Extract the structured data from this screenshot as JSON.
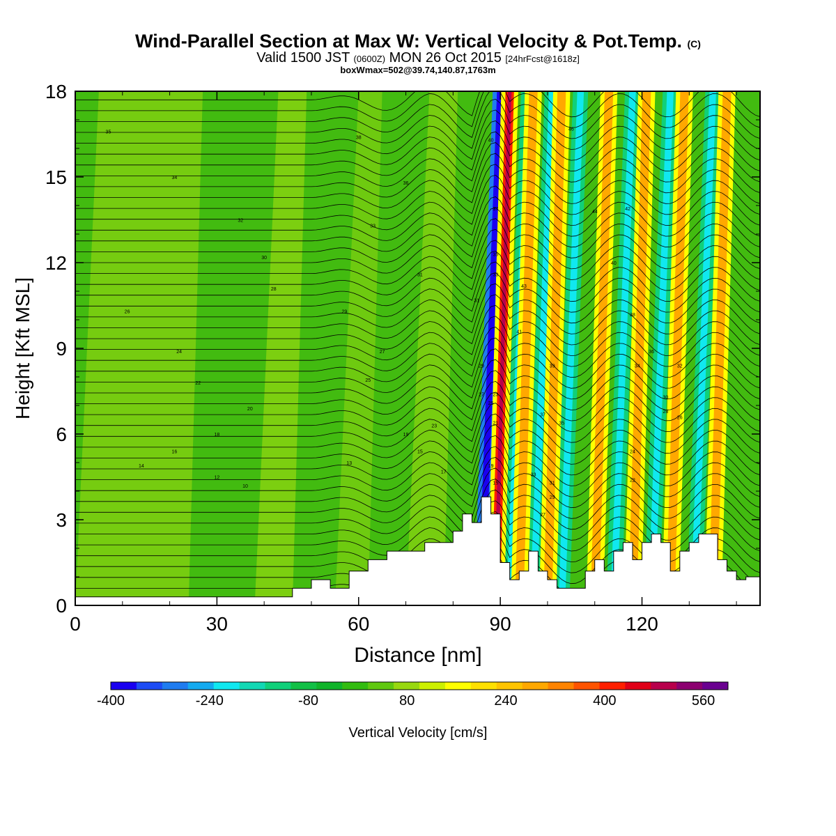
{
  "title": {
    "main": "Wind-Parallel Section at Max W: Vertical Velocity & Pot.Temp.",
    "copyright": "(C)",
    "valid_pre": "Valid 1500 JST",
    "valid_utc": "(0600Z)",
    "valid_post": "MON 26 Oct 2015",
    "forecast": "[24hrFcst@1618z]",
    "box": "boxWmax=502@39.74,140.87,1763m"
  },
  "chart_data": {
    "type": "heatmap",
    "xlabel": "Distance [nm]",
    "ylabel": "Height [Kft MSL]",
    "xlim": [
      0,
      145
    ],
    "ylim": [
      0,
      18
    ],
    "x_ticks": [
      0,
      30,
      60,
      90,
      120
    ],
    "y_ticks": [
      0,
      3,
      6,
      9,
      12,
      15,
      18
    ],
    "colorbar": {
      "label": "Vertical Velocity [cm/s]",
      "ticks": [
        "-400",
        "-240",
        "-80",
        "80",
        "240",
        "400",
        "560"
      ],
      "range": [
        -400,
        600
      ],
      "colors": [
        "#1a00f0",
        "#1e4cf5",
        "#1f7cf0",
        "#14aaf0",
        "#10e8f0",
        "#12d8b4",
        "#10d07a",
        "#12c046",
        "#10b42a",
        "#32bc10",
        "#60c810",
        "#98d810",
        "#ccf000",
        "#ffff00",
        "#ffe000",
        "#ffc400",
        "#ffa800",
        "#ff8400",
        "#ff5400",
        "#ff2000",
        "#e00018",
        "#b8004c",
        "#8c0070",
        "#6a0090"
      ]
    },
    "updraft_bands_x_nm": [
      89,
      94,
      100,
      110,
      118,
      126,
      135
    ],
    "downdraft_bands_x_nm": [
      86,
      92,
      97,
      103,
      114,
      122,
      131
    ],
    "terrain": {
      "x": [
        0,
        10,
        20,
        30,
        40,
        46,
        50,
        54,
        58,
        62,
        66,
        70,
        74,
        78,
        80,
        82,
        84,
        86,
        88,
        90,
        92,
        94,
        96,
        98,
        100,
        102,
        104,
        106,
        108,
        110,
        112,
        114,
        116,
        118,
        120,
        122,
        124,
        126,
        128,
        130,
        132,
        134,
        136,
        138,
        140,
        142,
        145
      ],
      "h": [
        0.3,
        0.3,
        0.3,
        0.3,
        0.3,
        0.6,
        0.9,
        0.6,
        1.2,
        1.6,
        1.9,
        1.9,
        2.2,
        2.2,
        2.6,
        3.2,
        2.9,
        3.8,
        3.2,
        1.5,
        0.9,
        1.2,
        1.9,
        1.2,
        0.9,
        0.6,
        0.6,
        0.6,
        1.2,
        1.6,
        1.2,
        1.9,
        2.2,
        1.6,
        2.2,
        2.5,
        2.2,
        1.2,
        1.9,
        2.2,
        2.5,
        2.5,
        1.6,
        1.2,
        0.9,
        1.0,
        1.0
      ]
    },
    "contour_labels": [
      {
        "x": 7,
        "y": 16.6,
        "t": "35"
      },
      {
        "x": 21,
        "y": 15.0,
        "t": "34"
      },
      {
        "x": 35,
        "y": 13.5,
        "t": "32"
      },
      {
        "x": 40,
        "y": 12.2,
        "t": "30"
      },
      {
        "x": 42,
        "y": 11.1,
        "t": "28"
      },
      {
        "x": 11,
        "y": 10.3,
        "t": "26"
      },
      {
        "x": 22,
        "y": 8.9,
        "t": "24"
      },
      {
        "x": 26,
        "y": 7.8,
        "t": "22"
      },
      {
        "x": 37,
        "y": 6.9,
        "t": "20"
      },
      {
        "x": 30,
        "y": 6.0,
        "t": "18"
      },
      {
        "x": 21,
        "y": 5.4,
        "t": "16"
      },
      {
        "x": 14,
        "y": 4.9,
        "t": "14"
      },
      {
        "x": 30,
        "y": 4.5,
        "t": "12"
      },
      {
        "x": 36,
        "y": 4.2,
        "t": "10"
      },
      {
        "x": 60,
        "y": 16.4,
        "t": "38"
      },
      {
        "x": 70,
        "y": 14.8,
        "t": "36"
      },
      {
        "x": 63,
        "y": 13.3,
        "t": "33"
      },
      {
        "x": 73,
        "y": 11.6,
        "t": "31"
      },
      {
        "x": 57,
        "y": 10.3,
        "t": "29"
      },
      {
        "x": 65,
        "y": 8.9,
        "t": "27"
      },
      {
        "x": 62,
        "y": 7.9,
        "t": "25"
      },
      {
        "x": 76,
        "y": 6.3,
        "t": "23"
      },
      {
        "x": 70,
        "y": 6.0,
        "t": "19"
      },
      {
        "x": 73,
        "y": 5.4,
        "t": "15"
      },
      {
        "x": 58,
        "y": 5.0,
        "t": "13"
      },
      {
        "x": 78,
        "y": 4.7,
        "t": "17"
      },
      {
        "x": 88,
        "y": 16.3,
        "t": "40"
      },
      {
        "x": 89,
        "y": 13.9,
        "t": "37"
      },
      {
        "x": 89,
        "y": 12.3,
        "t": "35"
      },
      {
        "x": 89,
        "y": 11.6,
        "t": "33"
      },
      {
        "x": 85,
        "y": 10.7,
        "t": "31"
      },
      {
        "x": 86,
        "y": 8.4,
        "t": "29"
      },
      {
        "x": 86,
        "y": 7.4,
        "t": "27"
      },
      {
        "x": 88,
        "y": 7.1,
        "t": "25"
      },
      {
        "x": 89,
        "y": 7.4,
        "t": "23"
      },
      {
        "x": 89,
        "y": 6.4,
        "t": "21"
      },
      {
        "x": 88,
        "y": 4.9,
        "t": "19"
      },
      {
        "x": 89,
        "y": 4.3,
        "t": "15"
      },
      {
        "x": 95,
        "y": 11.2,
        "t": "43"
      },
      {
        "x": 94,
        "y": 9.6,
        "t": "41"
      },
      {
        "x": 101,
        "y": 8.4,
        "t": "39"
      },
      {
        "x": 99,
        "y": 6.7,
        "t": "37"
      },
      {
        "x": 103,
        "y": 6.4,
        "t": "35"
      },
      {
        "x": 97,
        "y": 4.6,
        "t": "33"
      },
      {
        "x": 101,
        "y": 4.3,
        "t": "31"
      },
      {
        "x": 101,
        "y": 3.8,
        "t": "29"
      },
      {
        "x": 99,
        "y": 3.2,
        "t": "27"
      },
      {
        "x": 105,
        "y": 16.7,
        "t": "46"
      },
      {
        "x": 110,
        "y": 13.8,
        "t": "44"
      },
      {
        "x": 117,
        "y": 13.9,
        "t": "42"
      },
      {
        "x": 114,
        "y": 12.0,
        "t": "40"
      },
      {
        "x": 118,
        "y": 10.2,
        "t": "38"
      },
      {
        "x": 122,
        "y": 8.9,
        "t": "36"
      },
      {
        "x": 119,
        "y": 8.4,
        "t": "34"
      },
      {
        "x": 128,
        "y": 8.4,
        "t": "32"
      },
      {
        "x": 125,
        "y": 7.3,
        "t": "30"
      },
      {
        "x": 125,
        "y": 6.8,
        "t": "28"
      },
      {
        "x": 128,
        "y": 6.6,
        "t": "26"
      },
      {
        "x": 118,
        "y": 5.4,
        "t": "24"
      },
      {
        "x": 118,
        "y": 4.4,
        "t": "22"
      }
    ]
  }
}
